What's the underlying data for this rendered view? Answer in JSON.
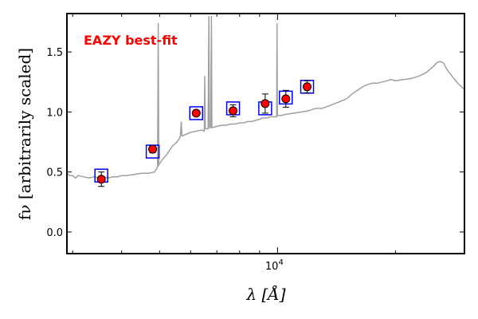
{
  "chart_data": {
    "type": "line",
    "title": "",
    "xlabel": "λ [Å]",
    "ylabel": "fν [arbitrarily scaled]",
    "xscale": "log",
    "xlim": [
      2900,
      30000
    ],
    "ylim": [
      -0.18,
      1.82
    ],
    "x_ticks": [
      {
        "value": 10000,
        "base": "10",
        "exp": "4"
      }
    ],
    "y_ticks": [
      {
        "value": 0.0,
        "label": "0.0"
      },
      {
        "value": 0.5,
        "label": "0.5"
      },
      {
        "value": 1.0,
        "label": "1.0"
      },
      {
        "value": 1.5,
        "label": "1.5"
      }
    ],
    "annotation": {
      "text": "EAZY best-fit",
      "color": "#ff0000"
    },
    "grid": false,
    "colors": {
      "template": "#a0a0a0",
      "model_box": "#0000ff",
      "observed_fill": "#ff0000",
      "observed_edge": "#000000",
      "frame": "#000000"
    },
    "series": [
      {
        "kind": "template",
        "points": [
          [
            2900,
            0.49
          ],
          [
            2950,
            0.47
          ],
          [
            3000,
            0.47
          ],
          [
            3050,
            0.45
          ],
          [
            3100,
            0.47
          ],
          [
            3200,
            0.46
          ],
          [
            3300,
            0.45
          ],
          [
            3400,
            0.46
          ],
          [
            3500,
            0.45
          ],
          [
            3600,
            0.46
          ],
          [
            3700,
            0.45
          ],
          [
            3800,
            0.46
          ],
          [
            3900,
            0.46
          ],
          [
            4000,
            0.47
          ],
          [
            4100,
            0.47
          ],
          [
            4300,
            0.48
          ],
          [
            4500,
            0.49
          ],
          [
            4700,
            0.49
          ],
          [
            4850,
            0.5
          ],
          [
            4900,
            0.52
          ],
          [
            4940,
            0.54
          ],
          [
            4960,
            1.74
          ],
          [
            4975,
            0.56
          ],
          [
            5000,
            0.57
          ],
          [
            5100,
            0.61
          ],
          [
            5200,
            0.64
          ],
          [
            5300,
            0.68
          ],
          [
            5400,
            0.72
          ],
          [
            5500,
            0.74
          ],
          [
            5600,
            0.77
          ],
          [
            5650,
            0.8
          ],
          [
            5680,
            0.92
          ],
          [
            5700,
            0.8
          ],
          [
            5800,
            0.81
          ],
          [
            5900,
            0.82
          ],
          [
            6000,
            0.83
          ],
          [
            6200,
            0.84
          ],
          [
            6400,
            0.85
          ],
          [
            6500,
            0.84
          ],
          [
            6520,
            1.3
          ],
          [
            6540,
            0.86
          ],
          [
            6650,
            0.86
          ],
          [
            6680,
            1.8
          ],
          [
            6700,
            0.87
          ],
          [
            6750,
            0.87
          ],
          [
            6780,
            1.8
          ],
          [
            6800,
            0.87
          ],
          [
            7000,
            0.88
          ],
          [
            7200,
            0.89
          ],
          [
            7400,
            0.89
          ],
          [
            7600,
            0.9
          ],
          [
            7800,
            0.9
          ],
          [
            8000,
            0.91
          ],
          [
            8200,
            0.91
          ],
          [
            8400,
            0.92
          ],
          [
            8600,
            0.92
          ],
          [
            8800,
            0.93
          ],
          [
            9000,
            0.94
          ],
          [
            9200,
            0.95
          ],
          [
            9400,
            0.95
          ],
          [
            9600,
            0.96
          ],
          [
            9800,
            0.96
          ],
          [
            9950,
            0.96
          ],
          [
            9970,
            1.74
          ],
          [
            9990,
            0.97
          ],
          [
            10200,
            0.97
          ],
          [
            10500,
            0.98
          ],
          [
            11000,
            0.99
          ],
          [
            11500,
            1.0
          ],
          [
            12000,
            1.01
          ],
          [
            12500,
            1.03
          ],
          [
            13000,
            1.03
          ],
          [
            13500,
            1.05
          ],
          [
            14000,
            1.07
          ],
          [
            14500,
            1.09
          ],
          [
            15000,
            1.11
          ],
          [
            15500,
            1.15
          ],
          [
            16000,
            1.18
          ],
          [
            16500,
            1.21
          ],
          [
            17000,
            1.23
          ],
          [
            17500,
            1.24
          ],
          [
            18000,
            1.24
          ],
          [
            18500,
            1.25
          ],
          [
            19000,
            1.26
          ],
          [
            19500,
            1.27
          ],
          [
            20000,
            1.26
          ],
          [
            21000,
            1.27
          ],
          [
            22000,
            1.28
          ],
          [
            23000,
            1.3
          ],
          [
            24000,
            1.33
          ],
          [
            25000,
            1.38
          ],
          [
            25500,
            1.41
          ],
          [
            26000,
            1.42
          ],
          [
            26500,
            1.41
          ],
          [
            27000,
            1.36
          ],
          [
            28000,
            1.29
          ],
          [
            29000,
            1.23
          ],
          [
            30000,
            1.19
          ]
        ]
      },
      {
        "kind": "model_photometry",
        "points": [
          [
            3550,
            0.47
          ],
          [
            4800,
            0.67
          ],
          [
            6200,
            0.99
          ],
          [
            7700,
            1.03
          ],
          [
            9300,
            1.03
          ],
          [
            10500,
            1.12
          ],
          [
            11900,
            1.21
          ]
        ]
      },
      {
        "kind": "observed_photometry",
        "points": [
          {
            "x": 3550,
            "y": 0.44,
            "err": 0.06
          },
          {
            "x": 4800,
            "y": 0.69,
            "err": 0.03
          },
          {
            "x": 6200,
            "y": 0.99,
            "err": 0.02
          },
          {
            "x": 7700,
            "y": 1.01,
            "err": 0.05
          },
          {
            "x": 9300,
            "y": 1.07,
            "err": 0.08
          },
          {
            "x": 10500,
            "y": 1.11,
            "err": 0.07
          },
          {
            "x": 11900,
            "y": 1.21,
            "err": 0.05
          }
        ]
      }
    ]
  }
}
